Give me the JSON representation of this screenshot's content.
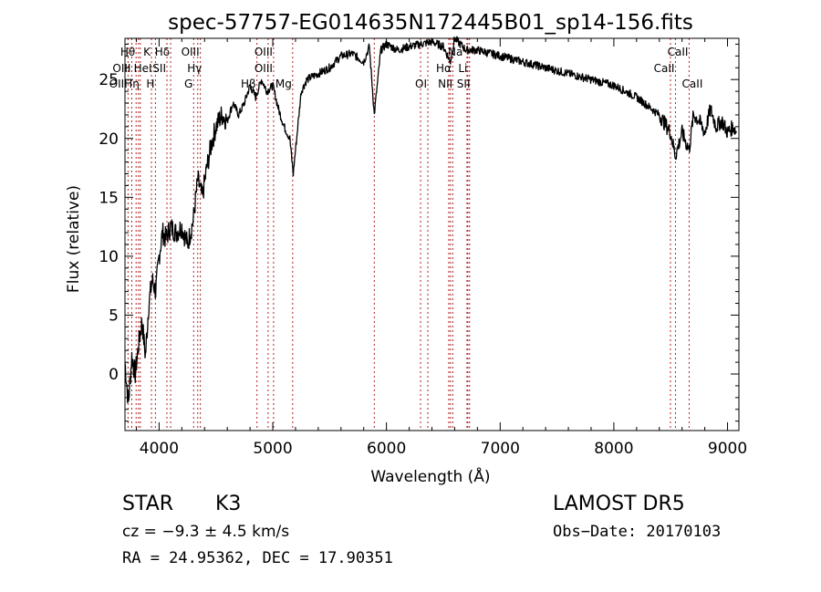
{
  "chart_data": {
    "type": "line",
    "title": "spec-57757-EG014635N172445B01_sp14-156.fits",
    "xlabel": "Wavelength (Å)",
    "ylabel": "Flux (relative)",
    "xlim": [
      3700,
      9100
    ],
    "ylim": [
      -4.8,
      28.5
    ],
    "xticks": [
      4000,
      5000,
      6000,
      7000,
      8000,
      9000
    ],
    "yticks": [
      0,
      5,
      10,
      15,
      20,
      25
    ],
    "grid": false,
    "colors": {
      "spectrum": "#000000",
      "lines": "#b22222",
      "frame": "#000000"
    },
    "spectrum": {
      "x": [
        3700,
        3730,
        3760,
        3790,
        3820,
        3850,
        3880,
        3910,
        3940,
        3970,
        4000,
        4030,
        4060,
        4100,
        4150,
        4200,
        4250,
        4300,
        4340,
        4380,
        4420,
        4460,
        4500,
        4550,
        4600,
        4650,
        4700,
        4750,
        4800,
        4850,
        4900,
        4950,
        5000,
        5050,
        5100,
        5150,
        5180,
        5200,
        5250,
        5300,
        5400,
        5500,
        5600,
        5700,
        5800,
        5850,
        5893,
        5950,
        6000,
        6100,
        6200,
        6300,
        6400,
        6500,
        6563,
        6600,
        6700,
        6800,
        7000,
        7200,
        7400,
        7600,
        7800,
        8000,
        8200,
        8400,
        8498,
        8542,
        8600,
        8662,
        8700,
        8750,
        8800,
        8850,
        8900,
        8950,
        9000,
        9050,
        9080
      ],
      "y": [
        1.0,
        -2.5,
        1.5,
        0.0,
        2.5,
        4.5,
        1.5,
        6.0,
        8.0,
        7.0,
        10.0,
        12.0,
        11.5,
        12.5,
        12.0,
        12.5,
        11.0,
        13.0,
        16.5,
        15.0,
        17.5,
        19.5,
        21.0,
        22.0,
        21.5,
        23.0,
        22.0,
        23.0,
        24.5,
        23.5,
        25.0,
        24.0,
        24.5,
        22.5,
        21.0,
        20.0,
        17.0,
        19.0,
        24.0,
        25.0,
        25.5,
        26.0,
        27.0,
        27.2,
        26.5,
        27.8,
        22.0,
        27.5,
        28.0,
        27.5,
        27.8,
        28.0,
        28.2,
        27.8,
        26.5,
        28.5,
        27.5,
        27.5,
        27.0,
        26.5,
        26.0,
        25.5,
        25.0,
        24.5,
        23.5,
        22.0,
        20.5,
        18.5,
        20.5,
        19.0,
        22.0,
        21.5,
        20.5,
        22.5,
        21.0,
        21.5,
        20.5,
        21.0,
        20.5
      ]
    },
    "line_markers": [
      {
        "label": "Hθ",
        "x": 3798
      },
      {
        "label": "OII",
        "x": 3727
      },
      {
        "label": "OIII",
        "x": 3760
      },
      {
        "label": "HeI",
        "x": 3819
      },
      {
        "label": "Hη",
        "x": 3835
      },
      {
        "label": "K",
        "x": 3933
      },
      {
        "label": "H",
        "x": 3968
      },
      {
        "label": "SII",
        "x": 4069
      },
      {
        "label": "Hδ",
        "x": 4102
      },
      {
        "label": "G",
        "x": 4304
      },
      {
        "label": "Hγ",
        "x": 4340
      },
      {
        "label": "OIII",
        "x": 4363
      },
      {
        "label": "Hβ",
        "x": 4861
      },
      {
        "label": "OIII",
        "x": 4959
      },
      {
        "label": "OIII",
        "x": 5007
      },
      {
        "label": "Mg",
        "x": 5175
      },
      {
        "label": "Na",
        "x": 5893
      },
      {
        "label": "OI",
        "x": 6300
      },
      {
        "label": "OI",
        "x": 6364
      },
      {
        "label": "NII",
        "x": 6548
      },
      {
        "label": "Hα",
        "x": 6563
      },
      {
        "label": "NII",
        "x": 6583
      },
      {
        "label": "Li",
        "x": 6708
      },
      {
        "label": "SII",
        "x": 6716
      },
      {
        "label": "SII",
        "x": 6731
      },
      {
        "label": "CaII",
        "x": 8498
      },
      {
        "label": "CaII",
        "x": 8542
      },
      {
        "label": "CaII",
        "x": 8662
      }
    ],
    "line_label_groups": [
      {
        "text": "Hθ",
        "anchor_x": 3798,
        "row": 0,
        "align": "end"
      },
      {
        "text": "K",
        "anchor_x": 3933,
        "row": 0,
        "align": "end"
      },
      {
        "text": "Hδ",
        "anchor_x": 4102,
        "row": 0,
        "align": "end"
      },
      {
        "text": "OIII",
        "anchor_x": 4363,
        "row": 0,
        "align": "end"
      },
      {
        "text": "OIII",
        "anchor_x": 5007,
        "row": 0,
        "align": "end"
      },
      {
        "text": "Na",
        "anchor_x": 6680,
        "row": 0,
        "align": "end"
      },
      {
        "text": "CaII",
        "anchor_x": 8662,
        "row": 0,
        "align": "end"
      },
      {
        "text": "OIII",
        "anchor_x": 3760,
        "row": 1,
        "align": "end"
      },
      {
        "text": "HeI",
        "anchor_x": 3945,
        "row": 1,
        "align": "end"
      },
      {
        "text": "SII",
        "anchor_x": 4069,
        "row": 1,
        "align": "end"
      },
      {
        "text": "Hγ",
        "anchor_x": 4385,
        "row": 1,
        "align": "end"
      },
      {
        "text": "OIII",
        "anchor_x": 5007,
        "row": 1,
        "align": "end"
      },
      {
        "text": "CaII",
        "anchor_x": 8542,
        "row": 1,
        "align": "end"
      },
      {
        "text": "OIIHη",
        "anchor_x": 3835,
        "row": 2,
        "align": "end"
      },
      {
        "text": "H",
        "anchor_x": 3968,
        "row": 2,
        "align": "end"
      },
      {
        "text": "G",
        "anchor_x": 4304,
        "row": 2,
        "align": "end"
      },
      {
        "text": "Hβ",
        "anchor_x": 4861,
        "row": 2,
        "align": "end"
      },
      {
        "text": "Mg",
        "anchor_x": 5175,
        "row": 2,
        "align": "end"
      },
      {
        "text": "OI",
        "anchor_x": 6364,
        "row": 2,
        "align": "end"
      },
      {
        "text": "NII",
        "anchor_x": 6590,
        "row": 2,
        "align": "end"
      },
      {
        "text": "SII",
        "anchor_x": 6745,
        "row": 2,
        "align": "end"
      },
      {
        "text": "CaII",
        "anchor_x": 8790,
        "row": 2,
        "align": "end"
      },
      {
        "text": "Hα",
        "anchor_x": 6580,
        "row": 1,
        "align": "end"
      },
      {
        "text": "Li",
        "anchor_x": 6720,
        "row": 1,
        "align": "end"
      }
    ]
  },
  "footer": {
    "object_class": "STAR",
    "subclass": "K3",
    "survey": "LAMOST DR5",
    "velocity": "cz = −9.3 ± 4.5 km/s",
    "obs_date": "Obs−Date: 20170103",
    "coords": "RA =  24.95362, DEC =  17.90351"
  }
}
